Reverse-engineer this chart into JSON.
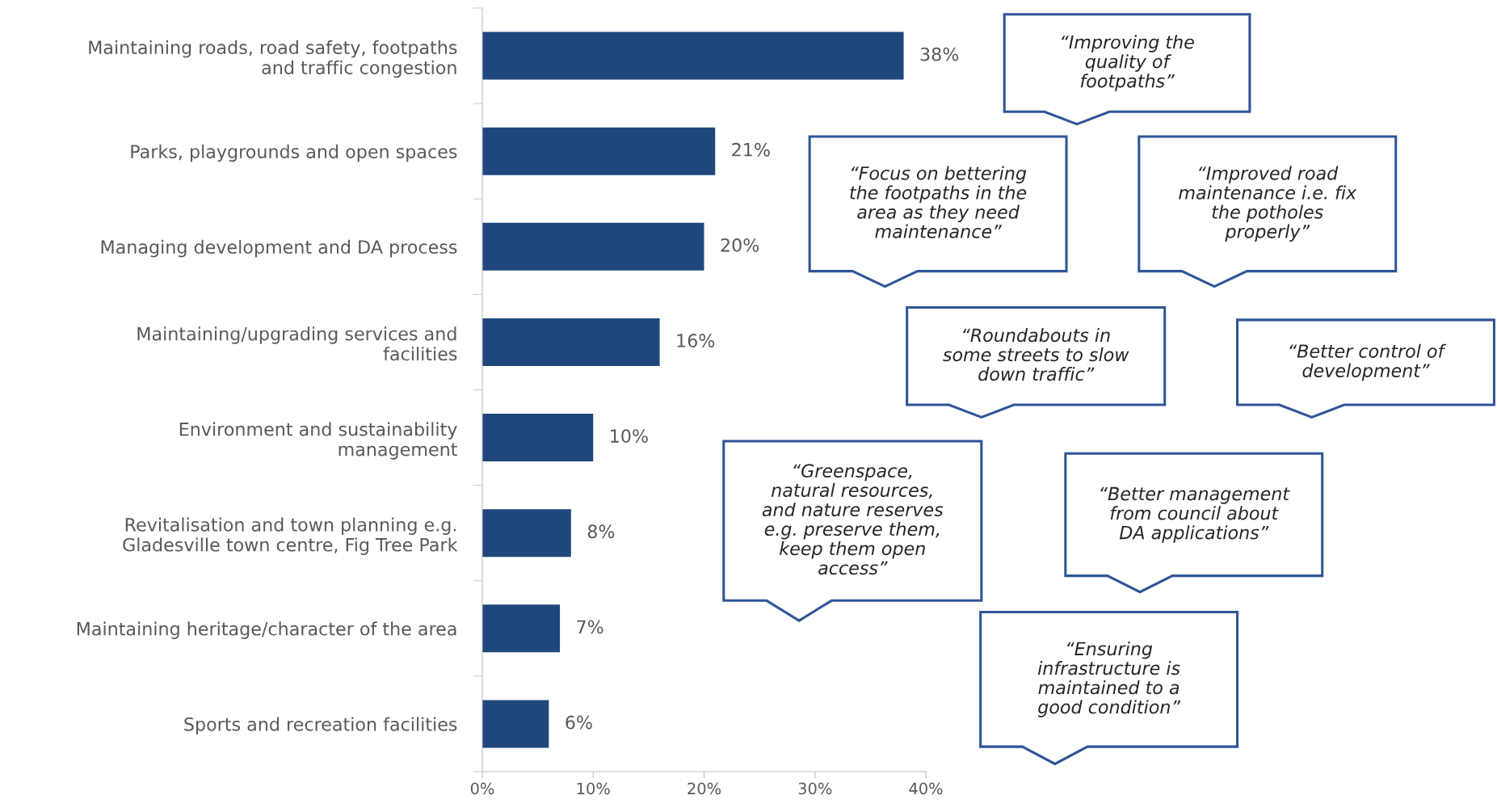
{
  "chart_data": {
    "type": "bar",
    "orientation": "horizontal",
    "categories": [
      "Maintaining roads, road safety, footpaths\nand traffic congestion",
      "Parks, playgrounds and open spaces",
      "Managing development and DA process",
      "Maintaining/upgrading services and\nfacilities",
      "Environment and sustainability\nmanagement",
      "Revitalisation and town planning e.g.\nGladesville town centre, Fig Tree Park",
      "Maintaining heritage/character of the area",
      "Sports and recreation facilities"
    ],
    "values": [
      38,
      21,
      20,
      16,
      10,
      8,
      7,
      6
    ],
    "color": "#1f477d",
    "xlim": [
      0,
      40
    ],
    "xticks": [
      {
        "value": 0,
        "label": "0%"
      },
      {
        "value": 10,
        "label": "10%"
      },
      {
        "value": 20,
        "label": "20%"
      },
      {
        "value": 30,
        "label": "30%"
      },
      {
        "value": 40,
        "label": "40%"
      }
    ],
    "value_labels": [
      "38%",
      "21%",
      "20%",
      "16%",
      "10%",
      "8%",
      "7%",
      "6%"
    ],
    "grid": false,
    "legend": false,
    "annotations": [
      "“Improving the\nquality of\nfootpaths”",
      "“Focus on bettering\nthe footpaths in the\narea as they need\nmaintenance”",
      "“Improved road\nmaintenance i.e. fix\nthe potholes\nproperly”",
      "“Roundabouts in\nsome streets to slow\ndown traffic”",
      "“Better control of\ndevelopment”",
      "“Greenspace,\nnatural resources,\nand nature reserves\ne.g. preserve them,\nkeep them open\naccess”",
      "“Better management\nfrom council about\nDA applications”",
      "“Ensuring\ninfrastructure is\nmaintained to a\ngood condition”"
    ]
  }
}
